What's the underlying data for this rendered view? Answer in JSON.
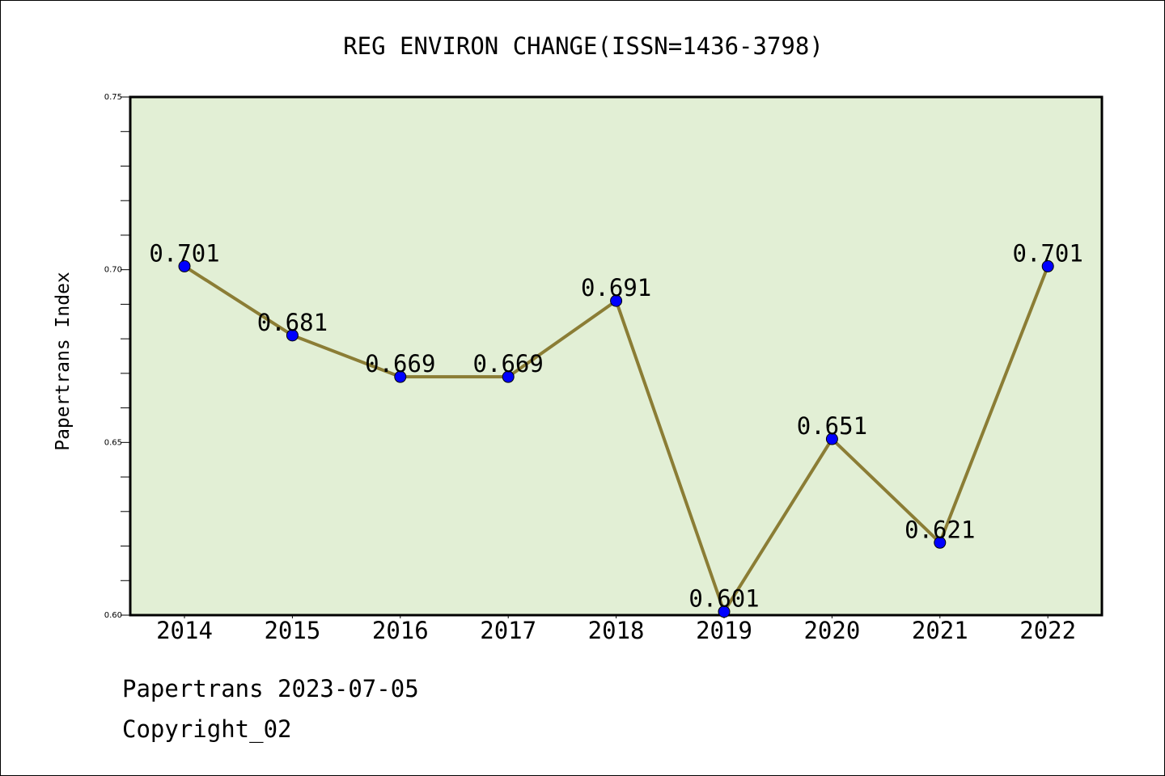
{
  "chart_data": {
    "type": "line",
    "title": "REG ENVIRON CHANGE(ISSN=1436-3798)",
    "xlabel": "",
    "ylabel": "Papertrans Index",
    "categories": [
      "2014",
      "2015",
      "2016",
      "2017",
      "2018",
      "2019",
      "2020",
      "2021",
      "2022"
    ],
    "series": [
      {
        "values": [
          0.701,
          0.681,
          0.669,
          0.669,
          0.691,
          0.601,
          0.651,
          0.621,
          0.701
        ],
        "labels": [
          "0.701",
          "0.681",
          "0.669",
          "0.669",
          "0.691",
          "0.601",
          "0.651",
          "0.621",
          "0.701"
        ]
      }
    ],
    "ylim": [
      0.6,
      0.75
    ],
    "yticks": [
      "0.60",
      "0.65",
      "0.70",
      "0.75"
    ],
    "ytick_values": [
      0.6,
      0.65,
      0.7,
      0.75
    ],
    "minor_tick_step": 0.01,
    "grid": false,
    "legend": false,
    "colors": {
      "plot_background": "#e2efd5",
      "line": "#8b7d35",
      "marker": "#0000ff"
    }
  },
  "footer": {
    "source": "Papertrans 2023-07-05",
    "copyright": "Copyright_02"
  }
}
